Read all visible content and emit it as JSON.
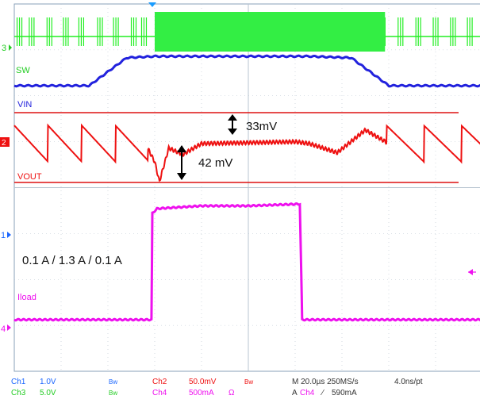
{
  "chart_data": {
    "type": "line",
    "x_divisions": 10,
    "y_divisions": 8,
    "time_per_div_us": 20.0,
    "grid": true,
    "series": [
      {
        "name": "SW",
        "color": "#2222dd",
        "x": [
          0,
          1.6,
          2.4,
          3.0,
          6.3,
          7.2,
          8.0,
          10
        ],
        "y": [
          0,
          0,
          0.95,
          1.0,
          1.0,
          0.95,
          0,
          0
        ]
      },
      {
        "name": "VOUT",
        "color": "#ee1111",
        "x": [
          0,
          2.8,
          3.0,
          3.1,
          3.3,
          3.6,
          4.0,
          6.0,
          6.3,
          6.9,
          7.5,
          8.0,
          10
        ],
        "y": [
          0,
          0,
          -20,
          -42,
          -5,
          -12,
          0,
          2,
          0,
          -10,
          15,
          0,
          0
        ]
      },
      {
        "name": "Iload",
        "color": "#ee11ee",
        "x": [
          0,
          2.93,
          2.95,
          3.05,
          4.0,
          5.0,
          6.1,
          6.15,
          10
        ],
        "y": [
          0.1,
          0.1,
          1.25,
          1.3,
          1.33,
          1.33,
          1.35,
          0.1,
          0.1
        ]
      }
    ],
    "annotations": {
      "sw_label": "SW",
      "vin_label": "VIN",
      "vout_label": "VOUT",
      "iload_label": "Iload",
      "ripple_label": "33mV",
      "drop_label": "42 mV",
      "load_step_label": "0.1 A / 1.3 A / 0.1 A"
    },
    "markers": {
      "ch3_level": "3",
      "ch2_level": "2",
      "ch1_level": "1",
      "ch4_level": "4",
      "trigger_arrow": "arrow-left-icon"
    }
  },
  "readout": {
    "ch1_name": "Ch1",
    "ch1_scale": "1.0V",
    "ch1_bw": "Bw",
    "ch3_name": "Ch3",
    "ch3_scale": "5.0V",
    "ch3_bw": "Bw",
    "ch2_name": "Ch2",
    "ch2_scale": "50.0mV",
    "ch2_bw": "Bw",
    "ch4_name": "Ch4",
    "ch4_scale": "500mA",
    "ch4_ohm": "Ω",
    "timebase": "M 20.0µs 250MS/s",
    "record": "4.0ns/pt",
    "trigger_prefix": "A",
    "trigger_source": "Ch4",
    "trigger_slope": "⁄",
    "trigger_level": "590mA"
  },
  "colors": {
    "ch1": "#1a66ff",
    "ch2": "#ee1111",
    "ch3": "#22ee22",
    "ch4": "#ee11ee",
    "blue_trace": "#2222dd"
  }
}
